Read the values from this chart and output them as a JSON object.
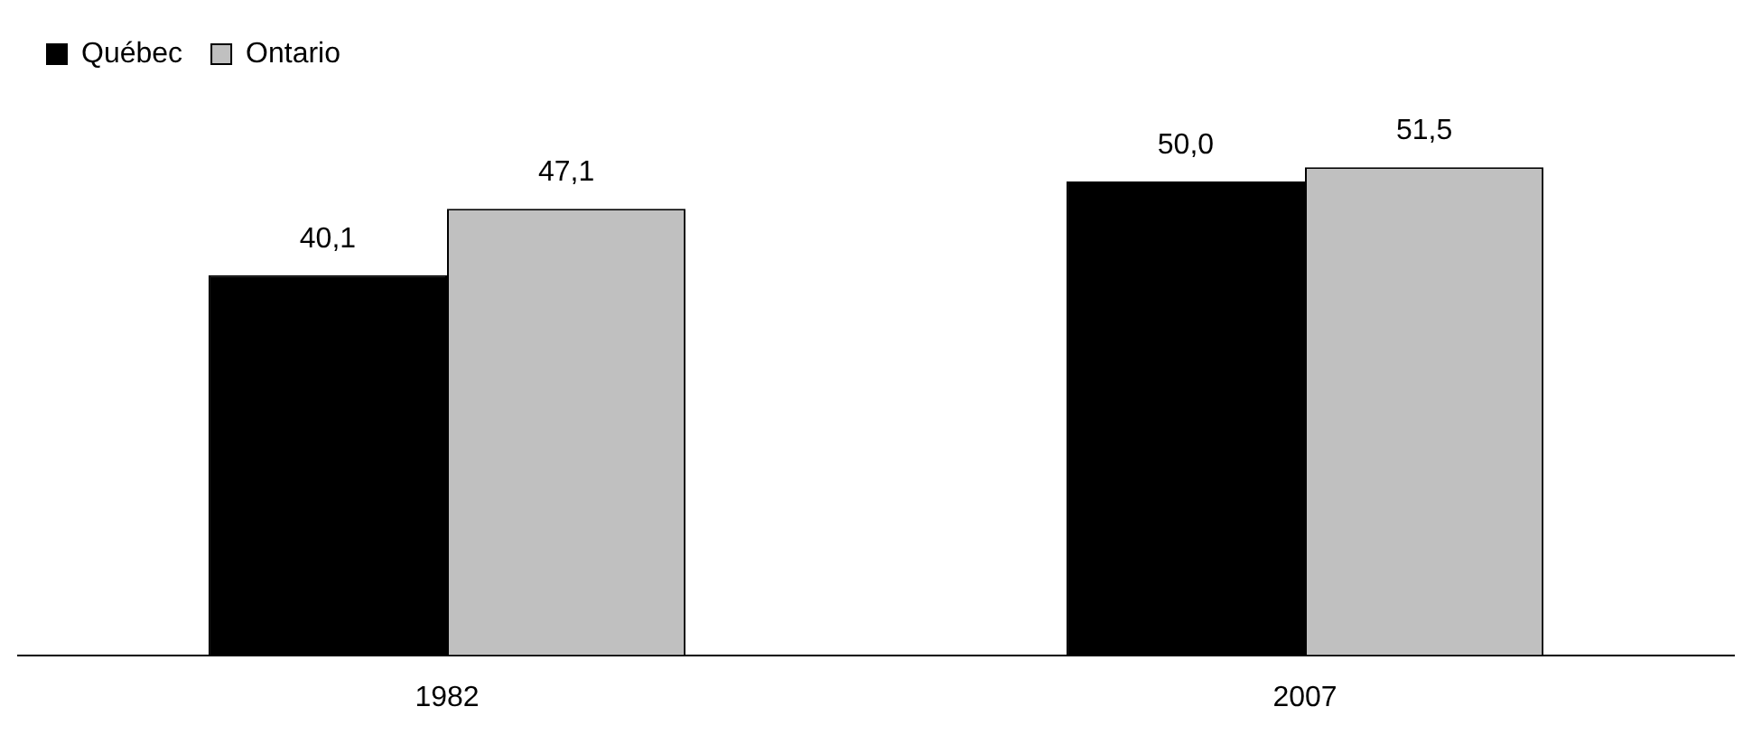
{
  "chart_data": {
    "type": "bar",
    "categories": [
      "1982",
      "2007"
    ],
    "series": [
      {
        "name": "Québec",
        "color": "#000000",
        "values": [
          40.1,
          50.0
        ],
        "value_labels": [
          "40,1",
          "50,0"
        ]
      },
      {
        "name": "Ontario",
        "color": "#c0c0c0",
        "values": [
          47.1,
          51.5
        ],
        "value_labels": [
          "47,1",
          "51,5"
        ]
      }
    ],
    "tick_labels": "x",
    "grid": false,
    "legend": "top left"
  }
}
